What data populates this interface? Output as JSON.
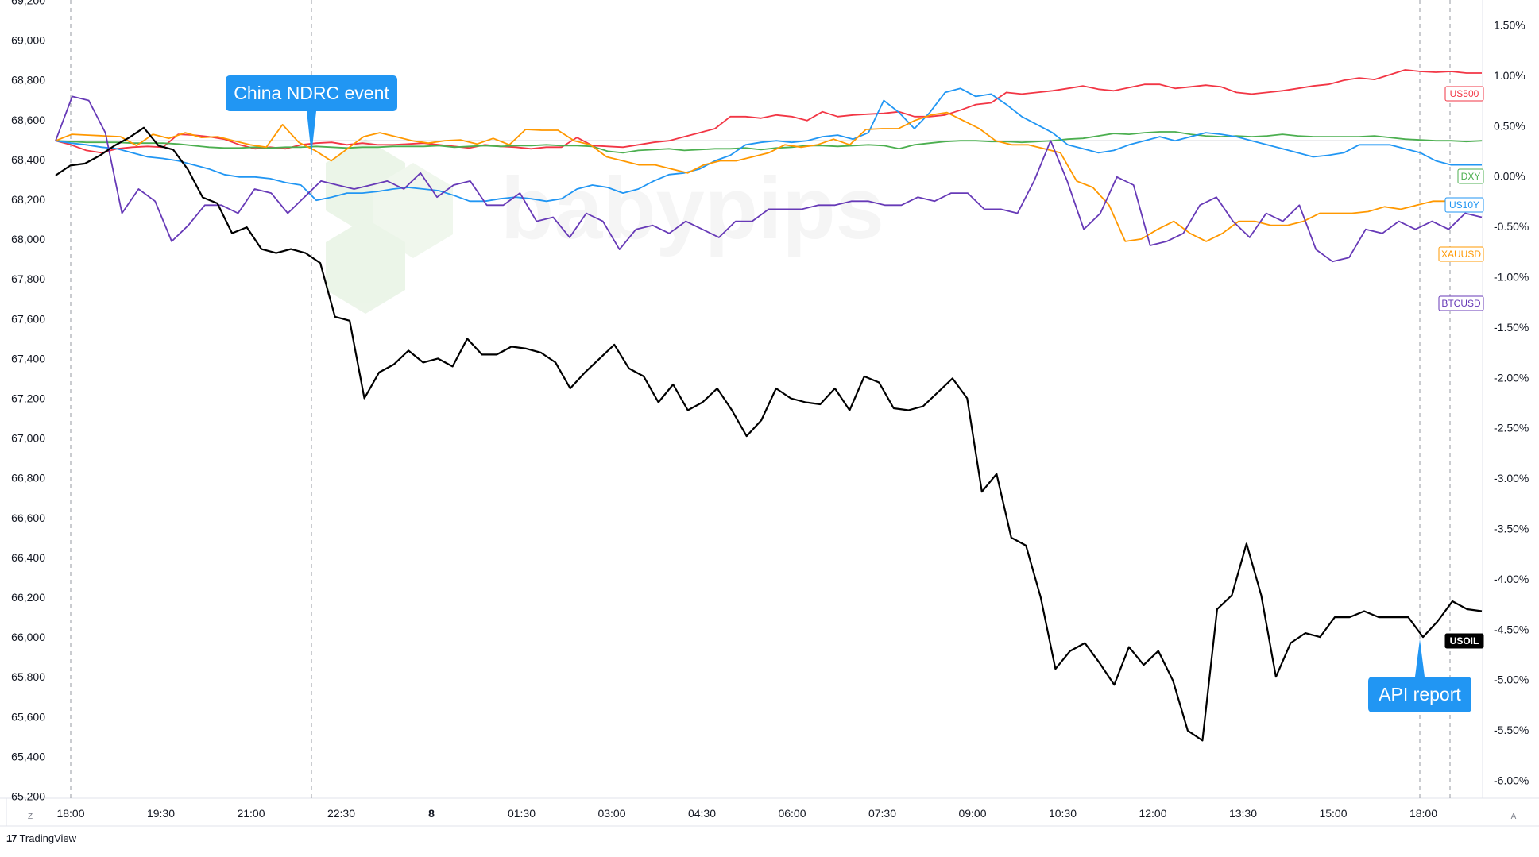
{
  "footer": {
    "brand": "TradingView",
    "logo_icon": "tradingview-logo-icon"
  },
  "watermark": "babypips",
  "corner_labels": {
    "left": "Z",
    "right": "A"
  },
  "chart_data": {
    "type": "line",
    "left_axis": {
      "ticks": [
        "69,200",
        "69,000",
        "68,800",
        "68,600",
        "68,400",
        "68,200",
        "68,000",
        "67,800",
        "67,600",
        "67,400",
        "67,200",
        "67,000",
        "66,800",
        "66,600",
        "66,400",
        "66,200",
        "66,000",
        "65,800",
        "65,600",
        "65,400",
        "65,200"
      ],
      "range": [
        65200,
        69200
      ]
    },
    "right_axis": {
      "ticks": [
        "1.50%",
        "1.00%",
        "0.50%",
        "0.00%",
        "-0.50%",
        "-1.00%",
        "-1.50%",
        "-2.00%",
        "-2.50%",
        "-3.00%",
        "-3.50%",
        "-4.00%",
        "-4.50%",
        "-5.00%",
        "-5.50%",
        "-6.00%"
      ],
      "range": [
        -6.0,
        1.5
      ]
    },
    "x_axis": {
      "ticks": [
        "18:00",
        "19:30",
        "21:00",
        "22:30",
        "8",
        "01:30",
        "03:00",
        "04:30",
        "06:00",
        "07:30",
        "09:00",
        "10:30",
        "12:00",
        "13:30",
        "15:00",
        "18:00"
      ]
    },
    "annotations": [
      {
        "label": "China NDRC event",
        "at": "22:15",
        "color": "#2196f3"
      },
      {
        "label": "API report",
        "at": "17:30",
        "color": "#2196f3"
      }
    ],
    "series": [
      {
        "name": "US500",
        "axis": "right",
        "color": "#f23645",
        "values": [
          0.0,
          -0.05,
          -0.12,
          -0.15,
          -0.1,
          -0.08,
          -0.07,
          -0.08,
          0.08,
          0.07,
          0.05,
          0.02,
          -0.05,
          -0.1,
          -0.08,
          -0.1,
          -0.05,
          -0.03,
          -0.02,
          -0.05,
          -0.03,
          -0.05,
          -0.05,
          -0.04,
          -0.03,
          -0.05,
          -0.07,
          -0.09,
          -0.05,
          -0.07,
          -0.08,
          -0.1,
          -0.08,
          -0.08,
          0.04,
          -0.06,
          -0.07,
          -0.08,
          -0.05,
          -0.02,
          0.0,
          0.05,
          0.1,
          0.15,
          0.3,
          0.3,
          0.28,
          0.32,
          0.3,
          0.25,
          0.36,
          0.3,
          0.32,
          0.33,
          0.34,
          0.36,
          0.3,
          0.3,
          0.32,
          0.38,
          0.45,
          0.47,
          0.6,
          0.58,
          0.6,
          0.62,
          0.65,
          0.68,
          0.64,
          0.62,
          0.66,
          0.7,
          0.7,
          0.65,
          0.67,
          0.69,
          0.67,
          0.6,
          0.58,
          0.6,
          0.62,
          0.65,
          0.68,
          0.7,
          0.75,
          0.78,
          0.76,
          0.82,
          0.88,
          0.86,
          0.85,
          0.86,
          0.84,
          0.84
        ]
      },
      {
        "name": "DXY",
        "axis": "right",
        "color": "#4caf50",
        "values": [
          0.0,
          -0.01,
          -0.02,
          -0.02,
          -0.02,
          -0.03,
          -0.03,
          -0.03,
          -0.04,
          -0.06,
          -0.08,
          -0.09,
          -0.09,
          -0.08,
          -0.09,
          -0.08,
          -0.08,
          -0.07,
          -0.08,
          -0.09,
          -0.08,
          -0.08,
          -0.07,
          -0.07,
          -0.07,
          -0.06,
          -0.08,
          -0.07,
          -0.06,
          -0.07,
          -0.06,
          -0.06,
          -0.05,
          -0.06,
          -0.06,
          -0.07,
          -0.13,
          -0.15,
          -0.12,
          -0.11,
          -0.1,
          -0.12,
          -0.11,
          -0.1,
          -0.1,
          -0.09,
          -0.11,
          -0.09,
          -0.08,
          -0.06,
          -0.06,
          -0.07,
          -0.06,
          -0.05,
          -0.06,
          -0.1,
          -0.05,
          -0.03,
          -0.01,
          0.0,
          0.0,
          -0.01,
          -0.01,
          -0.02,
          -0.01,
          0.0,
          0.02,
          0.03,
          0.06,
          0.09,
          0.08,
          0.1,
          0.11,
          0.11,
          0.08,
          0.06,
          0.05,
          0.06,
          0.05,
          0.06,
          0.08,
          0.06,
          0.05,
          0.05,
          0.05,
          0.05,
          0.06,
          0.04,
          0.02,
          0.01,
          0.0,
          0.0,
          -0.01,
          0.0
        ]
      },
      {
        "name": "US10Y",
        "axis": "right",
        "color": "#2196f3",
        "values": [
          0.0,
          -0.03,
          -0.05,
          -0.08,
          -0.1,
          -0.15,
          -0.2,
          -0.22,
          -0.25,
          -0.3,
          -0.35,
          -0.42,
          -0.45,
          -0.45,
          -0.47,
          -0.52,
          -0.55,
          -0.74,
          -0.7,
          -0.65,
          -0.65,
          -0.63,
          -0.6,
          -0.58,
          -0.6,
          -0.62,
          -0.68,
          -0.75,
          -0.75,
          -0.72,
          -0.7,
          -0.72,
          -0.75,
          -0.72,
          -0.6,
          -0.55,
          -0.58,
          -0.65,
          -0.6,
          -0.5,
          -0.42,
          -0.4,
          -0.35,
          -0.25,
          -0.18,
          -0.05,
          -0.02,
          0.0,
          -0.02,
          0.0,
          0.05,
          0.07,
          0.02,
          0.1,
          0.5,
          0.35,
          0.15,
          0.35,
          0.6,
          0.65,
          0.55,
          0.58,
          0.45,
          0.3,
          0.2,
          0.1,
          -0.05,
          -0.1,
          -0.15,
          -0.12,
          -0.05,
          0.0,
          0.05,
          0.0,
          0.05,
          0.1,
          0.08,
          0.05,
          0.0,
          -0.05,
          -0.1,
          -0.15,
          -0.2,
          -0.18,
          -0.15,
          -0.05,
          -0.05,
          -0.05,
          -0.1,
          -0.15,
          -0.25,
          -0.3,
          -0.3,
          -0.3
        ]
      },
      {
        "name": "XAUUSD",
        "axis": "right",
        "color": "#ff9800",
        "values": [
          0.0,
          0.08,
          0.07,
          0.06,
          0.05,
          -0.06,
          0.08,
          0.03,
          0.1,
          0.04,
          0.05,
          0.0,
          -0.05,
          -0.08,
          0.2,
          -0.02,
          -0.12,
          -0.25,
          -0.1,
          0.05,
          0.1,
          0.05,
          0.0,
          -0.03,
          0.0,
          0.01,
          -0.04,
          0.03,
          -0.05,
          0.14,
          0.13,
          0.13,
          0.0,
          -0.05,
          -0.2,
          -0.25,
          -0.3,
          -0.3,
          -0.35,
          -0.4,
          -0.3,
          -0.25,
          -0.25,
          -0.2,
          -0.15,
          -0.05,
          -0.08,
          -0.05,
          0.02,
          -0.05,
          0.14,
          0.15,
          0.15,
          0.25,
          0.32,
          0.35,
          0.25,
          0.15,
          0.0,
          -0.05,
          -0.05,
          -0.1,
          -0.15,
          -0.5,
          -0.58,
          -0.8,
          -1.25,
          -1.22,
          -1.1,
          -1.0,
          -1.15,
          -1.25,
          -1.15,
          -1.0,
          -1.0,
          -1.05,
          -1.05,
          -1.0,
          -0.9,
          -0.9,
          -0.9,
          -0.88,
          -0.82,
          -0.85,
          -0.8,
          -0.75,
          -0.75,
          -0.85,
          -0.85
        ]
      },
      {
        "name": "BTCUSD",
        "axis": "right",
        "color": "#673ab7",
        "values": [
          0.0,
          0.55,
          0.5,
          0.1,
          -0.9,
          -0.6,
          -0.75,
          -1.25,
          -1.05,
          -0.8,
          -0.8,
          -0.9,
          -0.6,
          -0.65,
          -0.9,
          -0.7,
          -0.5,
          -0.55,
          -0.6,
          -0.55,
          -0.5,
          -0.6,
          -0.4,
          -0.7,
          -0.55,
          -0.5,
          -0.8,
          -0.8,
          -0.65,
          -1.0,
          -0.95,
          -1.2,
          -0.9,
          -1.0,
          -1.35,
          -1.1,
          -1.05,
          -1.15,
          -1.0,
          -1.1,
          -1.2,
          -1.0,
          -1.0,
          -0.85,
          -0.85,
          -0.85,
          -0.8,
          -0.8,
          -0.75,
          -0.75,
          -0.8,
          -0.8,
          -0.7,
          -0.75,
          -0.65,
          -0.65,
          -0.85,
          -0.85,
          -0.9,
          -0.5,
          0.0,
          -0.5,
          -1.1,
          -0.9,
          -0.45,
          -0.55,
          -1.3,
          -1.25,
          -1.15,
          -0.8,
          -0.7,
          -1.0,
          -1.2,
          -0.9,
          -1.0,
          -0.8,
          -1.35,
          -1.5,
          -1.45,
          -1.1,
          -1.15,
          -1.0,
          -1.1,
          -1.0,
          -1.1,
          -0.9,
          -0.95
        ]
      },
      {
        "name": "USOIL",
        "axis": "left",
        "color": "#000000",
        "values": [
          68320,
          68370,
          68380,
          68420,
          68470,
          68510,
          68560,
          68470,
          68450,
          68350,
          68210,
          68180,
          68030,
          68060,
          67950,
          67930,
          67950,
          67930,
          67880,
          67610,
          67590,
          67200,
          67330,
          67370,
          67440,
          67380,
          67400,
          67360,
          67500,
          67420,
          67420,
          67460,
          67450,
          67430,
          67380,
          67250,
          67330,
          67400,
          67470,
          67350,
          67310,
          67180,
          67270,
          67140,
          67180,
          67250,
          67140,
          67010,
          67090,
          67250,
          67200,
          67180,
          67170,
          67250,
          67140,
          67310,
          67280,
          67150,
          67140,
          67160,
          67230,
          67300,
          67200,
          66730,
          66820,
          66500,
          66460,
          66200,
          65840,
          65930,
          65970,
          65870,
          65760,
          65950,
          65860,
          65930,
          65780,
          65530,
          65480,
          66140,
          66210,
          66470,
          66210,
          65800,
          65970,
          66020,
          66000,
          66100,
          66100,
          66130,
          66100,
          66100,
          66100,
          66000,
          66080,
          66180,
          66140,
          66130
        ]
      }
    ]
  }
}
